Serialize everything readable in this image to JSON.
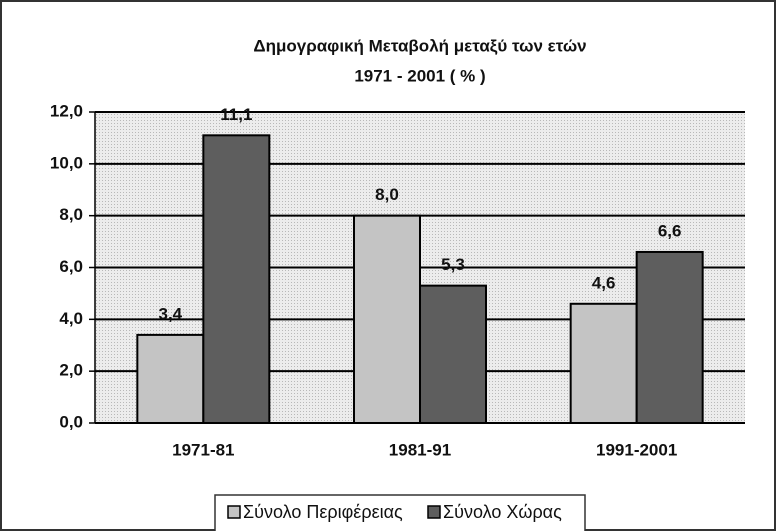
{
  "chart_data": {
    "type": "bar",
    "title": [
      "Δημογραφική Μεταβολή μεταξύ των ετών",
      "1971 - 2001   ( % )"
    ],
    "categories": [
      "1971-81",
      "1981-91",
      "1991-2001"
    ],
    "series": [
      {
        "name": "Σύνολο Περιφέρειας",
        "color": "#c4c4c4",
        "values": [
          3.4,
          8.0,
          4.6
        ],
        "value_labels": [
          "3,4",
          "8,0",
          "4,6"
        ]
      },
      {
        "name": "Σύνολο Χώρας",
        "color": "#5e5e5e",
        "values": [
          11.1,
          5.3,
          6.6
        ],
        "value_labels": [
          "11,1",
          "5,3",
          "6,6"
        ]
      }
    ],
    "ylim": [
      0,
      12
    ],
    "yticks": [
      {
        "value": 0,
        "label": "0,0"
      },
      {
        "value": 2,
        "label": "2,0"
      },
      {
        "value": 4,
        "label": "4,0"
      },
      {
        "value": 6,
        "label": "6,0"
      },
      {
        "value": 8,
        "label": "8,0"
      },
      {
        "value": 10,
        "label": "10,0"
      },
      {
        "value": 12,
        "label": "12,0"
      }
    ],
    "grid": true,
    "legend": "bottom"
  }
}
